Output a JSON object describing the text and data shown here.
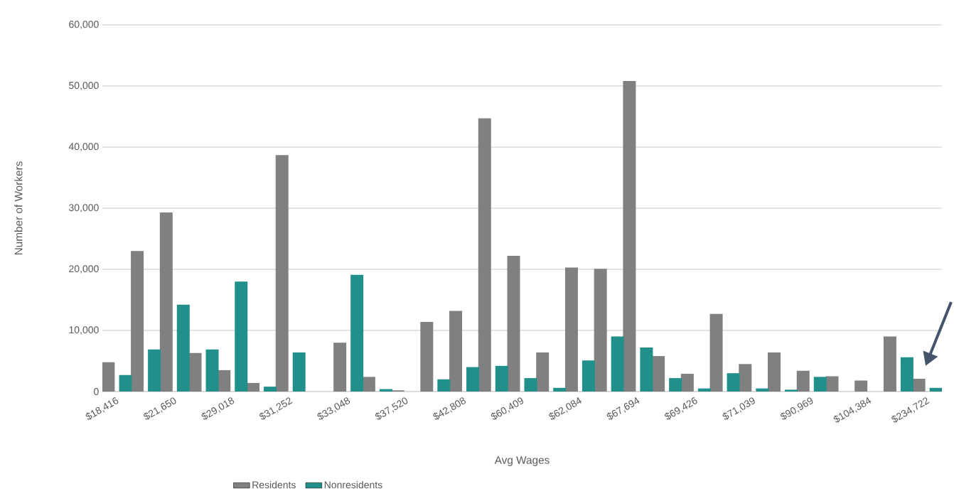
{
  "chart_data": {
    "type": "bar",
    "xlabel": "Avg Wages",
    "ylabel": "Number of Workers",
    "categories": [
      "$18,416",
      null,
      "$21,650",
      null,
      "$29,018",
      null,
      "$31,252",
      null,
      "$33,048",
      null,
      "$37,520",
      null,
      "$42,808",
      null,
      "$60,409",
      null,
      "$62,084",
      null,
      "$67,694",
      null,
      "$69,426",
      null,
      "$71,039",
      null,
      "$90,969",
      null,
      "$104,384",
      null,
      "$234,722"
    ],
    "series": [
      {
        "name": "Residents",
        "color": "#808080",
        "values": [
          4800,
          23000,
          29300,
          6300,
          3500,
          1400,
          38700,
          null,
          8000,
          2400,
          200,
          11400,
          13200,
          44700,
          22200,
          6400,
          20300,
          20100,
          50800,
          5800,
          2900,
          12700,
          4500,
          6400,
          3400,
          2500,
          1800,
          9000,
          2100
        ]
      },
      {
        "name": "Nonresidents",
        "color": "#21908b",
        "values": [
          2700,
          6900,
          14200,
          6900,
          18000,
          800,
          6400,
          null,
          19100,
          400,
          null,
          2000,
          4000,
          4200,
          2200,
          600,
          5100,
          9000,
          7200,
          2200,
          500,
          3000,
          500,
          300,
          2400,
          null,
          null,
          5600,
          600
        ]
      }
    ],
    "ylim": [
      0,
      60000
    ],
    "yticks": [
      0,
      {
        "value": 10000,
        "label": "10,000"
      },
      {
        "value": 20000,
        "label": "20,000"
      },
      {
        "value": 30000,
        "label": "30,000"
      },
      {
        "value": 40000,
        "label": "40,000"
      },
      {
        "value": 50000,
        "label": "50,000"
      },
      {
        "value": 60000,
        "label": "60,000"
      }
    ],
    "grid": "y",
    "legend": "bottom"
  }
}
